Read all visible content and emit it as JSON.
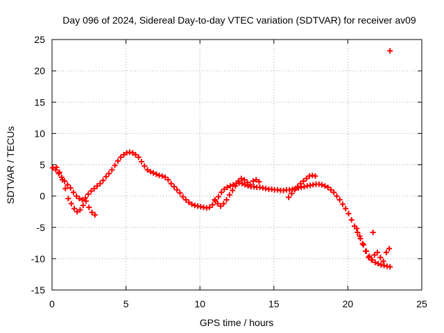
{
  "chart_data": {
    "type": "scatter",
    "title": "Day 096 of 2024, Sidereal Day-to-day VTEC variation (SDTVAR) for receiver av09",
    "xlabel": "GPS time / hours",
    "ylabel": "SDTVAR / TECUs",
    "xlim": [
      0,
      25
    ],
    "ylim": [
      -15,
      25
    ],
    "xticks": [
      0,
      5,
      10,
      15,
      20,
      25
    ],
    "yticks": [
      -15,
      -10,
      -5,
      0,
      5,
      10,
      15,
      20,
      25
    ],
    "grid": true,
    "marker": "+",
    "color": "#ff0000",
    "series": [
      {
        "name": "SDTVAR",
        "x": [
          0.05,
          0.25,
          0.45,
          0.65,
          0.85,
          1.05,
          1.25,
          1.45,
          1.65,
          1.85,
          2.05,
          2.25,
          2.45,
          2.65,
          2.85,
          3.05,
          3.25,
          3.45,
          3.65,
          3.85,
          4.05,
          4.25,
          4.45,
          4.65,
          4.85,
          5.05,
          5.25,
          5.45,
          5.65,
          5.85,
          6.05,
          6.25,
          6.45,
          6.65,
          6.85,
          7.05,
          7.25,
          7.45,
          7.65,
          7.85,
          8.05,
          8.25,
          8.45,
          8.65,
          8.85,
          9.05,
          9.25,
          9.45,
          9.65,
          9.85,
          10.05,
          10.25,
          10.45,
          10.65,
          10.85,
          11.05,
          11.25,
          11.45,
          11.65,
          11.85,
          12.05,
          12.25,
          12.45,
          12.65,
          12.85,
          13.05,
          13.25,
          13.45,
          13.65,
          13.85,
          14.05,
          14.25,
          14.45,
          14.65,
          14.85,
          15.05,
          15.25,
          15.45,
          15.65,
          15.85,
          16.05,
          16.25,
          16.45,
          16.65,
          16.85,
          17.05,
          17.25,
          17.45,
          17.65,
          17.85,
          18.05,
          18.25,
          18.45,
          18.65,
          18.85,
          19.05,
          19.25,
          19.45,
          19.65,
          19.85,
          20.05,
          20.25,
          20.45,
          20.65,
          20.85,
          21.05,
          21.25,
          21.45,
          21.65,
          21.85,
          22.05,
          22.25,
          22.45,
          22.65,
          22.85,
          0.3,
          0.5,
          0.7,
          0.9,
          1.1,
          1.3,
          1.5,
          1.7,
          1.9,
          2.1,
          2.3,
          2.5,
          2.7,
          2.9,
          11.0,
          11.2,
          11.4,
          11.6,
          11.8,
          12.0,
          12.2,
          12.4,
          12.6,
          12.8,
          13.0,
          13.2,
          13.4,
          13.6,
          13.8,
          14.0,
          16.0,
          16.2,
          16.4,
          16.6,
          16.8,
          17.0,
          17.2,
          17.4,
          17.6,
          17.8,
          20.6,
          20.8,
          21.0,
          21.2,
          21.4,
          21.6,
          21.8,
          22.0,
          22.2,
          22.4,
          22.6,
          22.8,
          21.7,
          22.85
        ],
        "y": [
          4.5,
          4.2,
          3.6,
          3.0,
          2.4,
          1.8,
          1.3,
          0.6,
          0.0,
          -0.4,
          -0.6,
          -0.3,
          0.3,
          0.8,
          1.2,
          1.6,
          2.0,
          2.5,
          3.1,
          3.6,
          4.2,
          4.9,
          5.6,
          6.2,
          6.6,
          6.9,
          7.0,
          6.9,
          6.6,
          6.2,
          5.5,
          4.8,
          4.2,
          3.9,
          3.7,
          3.5,
          3.3,
          3.2,
          3.0,
          2.6,
          2.0,
          1.5,
          1.0,
          0.5,
          -0.1,
          -0.6,
          -1.0,
          -1.3,
          -1.5,
          -1.6,
          -1.7,
          -1.8,
          -1.9,
          -1.8,
          -1.4,
          -0.8,
          -0.1,
          0.6,
          1.1,
          1.4,
          1.6,
          1.8,
          2.0,
          2.1,
          2.0,
          1.8,
          1.6,
          1.5,
          1.5,
          1.4,
          1.4,
          1.3,
          1.2,
          1.1,
          1.1,
          1.0,
          1.0,
          0.9,
          0.9,
          1.0,
          1.0,
          1.1,
          1.2,
          1.3,
          1.4,
          1.5,
          1.6,
          1.7,
          1.8,
          1.9,
          1.9,
          1.8,
          1.6,
          1.4,
          1.0,
          0.6,
          0.0,
          -0.6,
          -1.3,
          -2.0,
          -2.8,
          -3.8,
          -4.8,
          -5.8,
          -6.8,
          -7.8,
          -8.8,
          -9.6,
          -10.2,
          -10.6,
          -10.8,
          -11.0,
          -11.1,
          -11.2,
          -11.3,
          4.6,
          3.8,
          2.6,
          1.2,
          -0.4,
          -1.2,
          -2.0,
          -2.5,
          -2.2,
          -1.5,
          -0.8,
          -1.8,
          -2.6,
          -3.0,
          -0.6,
          -1.2,
          -1.6,
          -1.2,
          -0.6,
          0.2,
          0.9,
          1.6,
          2.4,
          2.8,
          2.6,
          2.2,
          1.8,
          2.4,
          2.6,
          2.3,
          -0.2,
          0.4,
          1.0,
          1.5,
          2.0,
          2.4,
          2.8,
          3.2,
          3.3,
          3.2,
          -5.2,
          -6.4,
          -7.6,
          -8.8,
          -9.8,
          -10.2,
          -9.4,
          -9.0,
          -9.8,
          -10.4,
          -9.0,
          -8.4,
          -5.8,
          23.2
        ]
      }
    ]
  }
}
